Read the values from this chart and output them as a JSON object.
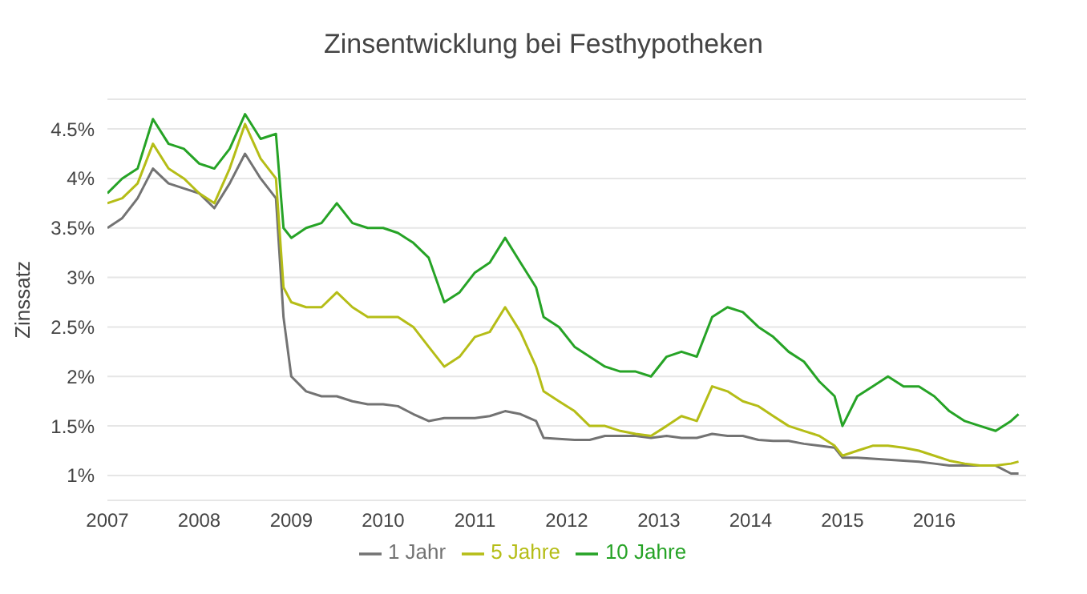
{
  "chart_data": {
    "type": "line",
    "title": "Zinsentwicklung bei Festhypotheken",
    "ylabel": "Zinssatz",
    "x": [
      "2007-01",
      "2007-03",
      "2007-05",
      "2007-07",
      "2007-09",
      "2007-11",
      "2008-01",
      "2008-03",
      "2008-05",
      "2008-07",
      "2008-09",
      "2008-11",
      "2008-12",
      "2009-01",
      "2009-03",
      "2009-05",
      "2009-07",
      "2009-09",
      "2009-11",
      "2010-01",
      "2010-03",
      "2010-05",
      "2010-07",
      "2010-09",
      "2010-11",
      "2011-01",
      "2011-03",
      "2011-05",
      "2011-07",
      "2011-09",
      "2011-10",
      "2011-12",
      "2012-02",
      "2012-04",
      "2012-06",
      "2012-08",
      "2012-10",
      "2012-12",
      "2013-02",
      "2013-04",
      "2013-06",
      "2013-08",
      "2013-10",
      "2013-12",
      "2014-02",
      "2014-04",
      "2014-06",
      "2014-08",
      "2014-10",
      "2014-12",
      "2015-01",
      "2015-03",
      "2015-05",
      "2015-07",
      "2015-09",
      "2015-11",
      "2016-01",
      "2016-03",
      "2016-05",
      "2016-07",
      "2016-09",
      "2016-11",
      "2016-12"
    ],
    "series": [
      {
        "name": "1 Jahr",
        "color": "#737373",
        "values": [
          3.5,
          3.6,
          3.8,
          4.1,
          3.95,
          3.9,
          3.85,
          3.7,
          3.95,
          4.25,
          4.0,
          3.8,
          2.6,
          2.0,
          1.85,
          1.8,
          1.8,
          1.75,
          1.72,
          1.72,
          1.7,
          1.62,
          1.55,
          1.58,
          1.58,
          1.58,
          1.6,
          1.65,
          1.62,
          1.55,
          1.38,
          1.37,
          1.36,
          1.36,
          1.4,
          1.4,
          1.4,
          1.38,
          1.4,
          1.38,
          1.38,
          1.42,
          1.4,
          1.4,
          1.36,
          1.35,
          1.35,
          1.32,
          1.3,
          1.28,
          1.18,
          1.18,
          1.17,
          1.16,
          1.15,
          1.14,
          1.12,
          1.1,
          1.1,
          1.1,
          1.1,
          1.02,
          1.02
        ]
      },
      {
        "name": "5 Jahre",
        "color": "#b5bd17",
        "values": [
          3.75,
          3.8,
          3.95,
          4.35,
          4.1,
          4.0,
          3.85,
          3.75,
          4.1,
          4.55,
          4.2,
          4.0,
          2.9,
          2.75,
          2.7,
          2.7,
          2.85,
          2.7,
          2.6,
          2.6,
          2.6,
          2.5,
          2.3,
          2.1,
          2.2,
          2.4,
          2.45,
          2.7,
          2.45,
          2.1,
          1.85,
          1.75,
          1.65,
          1.5,
          1.5,
          1.45,
          1.42,
          1.4,
          1.5,
          1.6,
          1.55,
          1.9,
          1.85,
          1.75,
          1.7,
          1.6,
          1.5,
          1.45,
          1.4,
          1.3,
          1.2,
          1.25,
          1.3,
          1.3,
          1.28,
          1.25,
          1.2,
          1.15,
          1.12,
          1.1,
          1.1,
          1.12,
          1.14
        ]
      },
      {
        "name": "10 Jahre",
        "color": "#26a326",
        "values": [
          3.85,
          4.0,
          4.1,
          4.6,
          4.35,
          4.3,
          4.15,
          4.1,
          4.3,
          4.65,
          4.4,
          4.45,
          3.5,
          3.4,
          3.5,
          3.55,
          3.75,
          3.55,
          3.5,
          3.5,
          3.45,
          3.35,
          3.2,
          2.75,
          2.85,
          3.05,
          3.15,
          3.4,
          3.15,
          2.9,
          2.6,
          2.5,
          2.3,
          2.2,
          2.1,
          2.05,
          2.05,
          2.0,
          2.2,
          2.25,
          2.2,
          2.6,
          2.7,
          2.65,
          2.5,
          2.4,
          2.25,
          2.15,
          1.95,
          1.8,
          1.5,
          1.8,
          1.9,
          2.0,
          1.9,
          1.9,
          1.8,
          1.65,
          1.55,
          1.5,
          1.45,
          1.55,
          1.62
        ]
      }
    ],
    "xlim": [
      "2007",
      "2016-12-31"
    ],
    "xticks": [
      "2007",
      "2008",
      "2009",
      "2010",
      "2011",
      "2012",
      "2013",
      "2014",
      "2015",
      "2016"
    ],
    "ylim": [
      0.75,
      4.8
    ],
    "yticks": [
      {
        "value": 1,
        "label": "1%"
      },
      {
        "value": 1.5,
        "label": "1.5%"
      },
      {
        "value": 2,
        "label": "2%"
      },
      {
        "value": 2.5,
        "label": "2.5%"
      },
      {
        "value": 3,
        "label": "3%"
      },
      {
        "value": 3.5,
        "label": "3.5%"
      },
      {
        "value": 4,
        "label": "4%"
      },
      {
        "value": 4.5,
        "label": "4.5%"
      }
    ],
    "grid": "y",
    "legend": "bottom",
    "marker": "none",
    "line_style": "solid"
  }
}
